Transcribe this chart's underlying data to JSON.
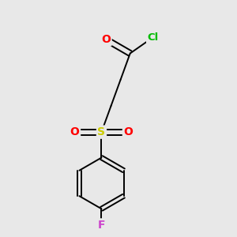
{
  "background_color": "#e8e8e8",
  "bond_color": "#000000",
  "atom_colors": {
    "O": "#ff0000",
    "Cl": "#00bb00",
    "S": "#cccc00",
    "F": "#cc44cc",
    "C": "#000000"
  },
  "figsize": [
    3.0,
    3.0
  ],
  "dpi": 100,
  "bond_lw": 1.4,
  "fontsize": 9.5
}
